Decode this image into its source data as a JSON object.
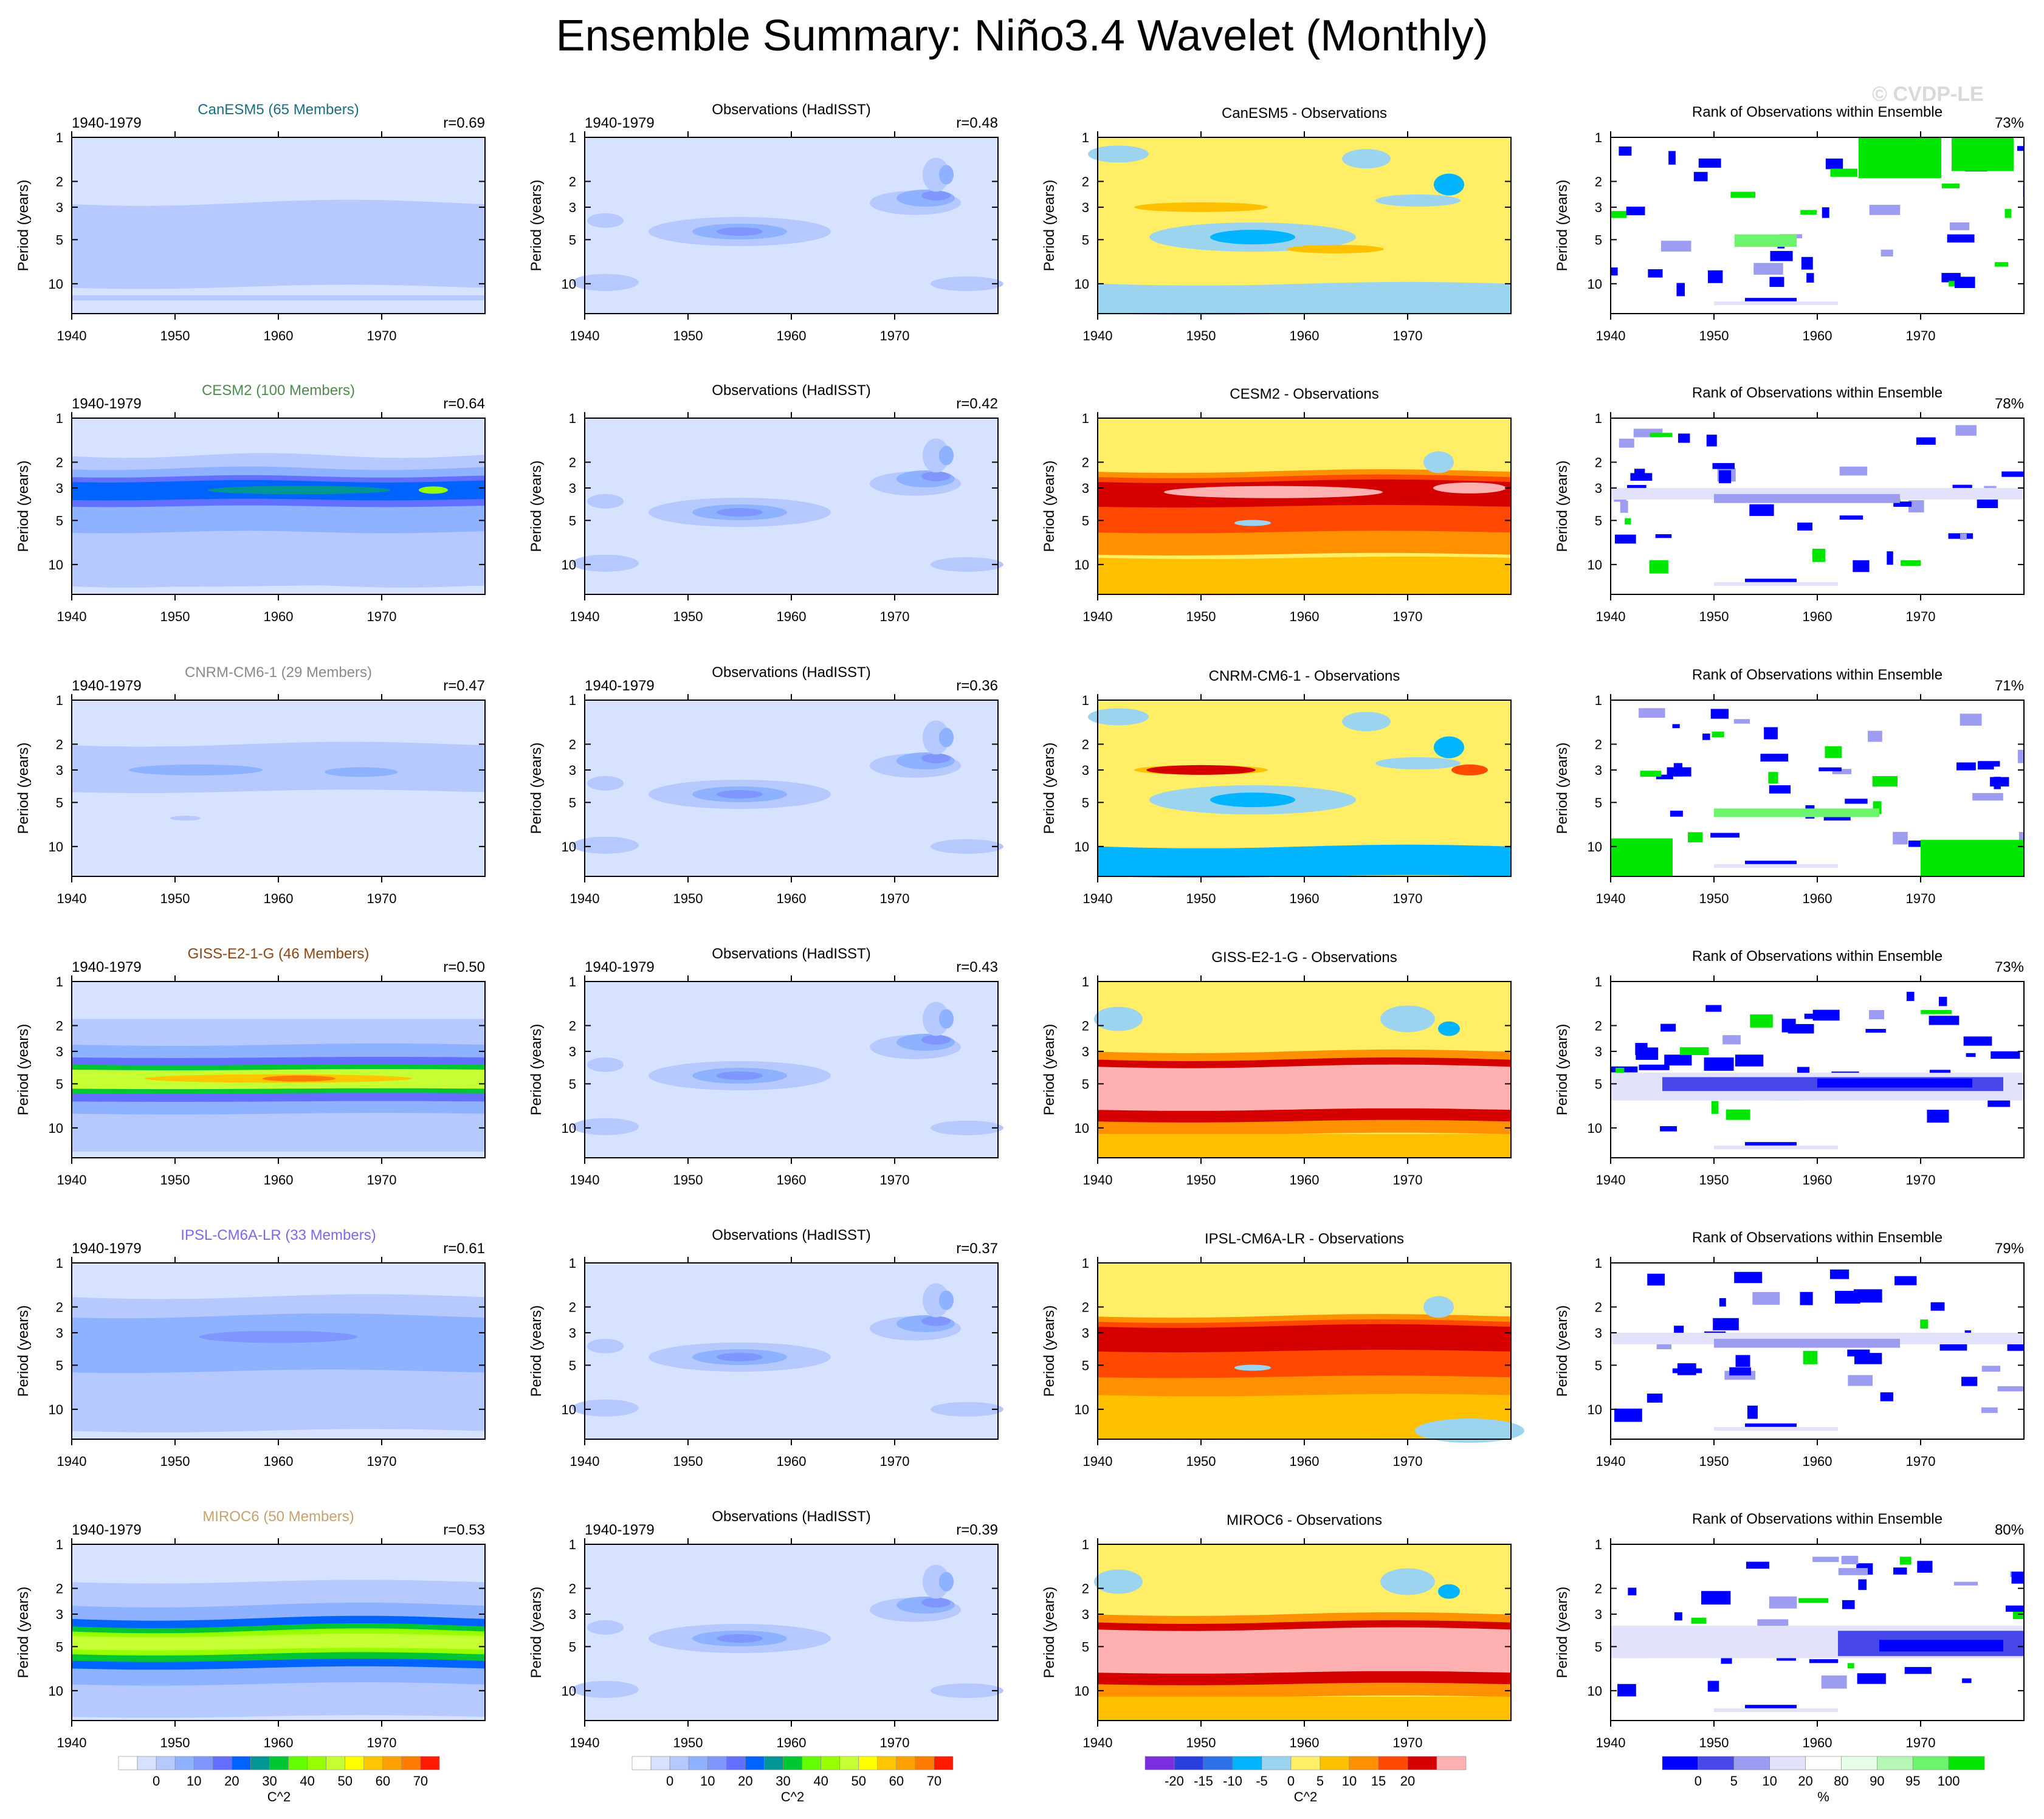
{
  "title": "Ensemble Summary: Niño3.4 Wavelet (Monthly)",
  "watermark": "© CVDP-LE",
  "colors": {
    "power": [
      "#ffffff",
      "#d6e2ff",
      "#b5c9ff",
      "#8eb2ff",
      "#7f96ff",
      "#6370ff",
      "#0063ff",
      "#009696",
      "#00c633",
      "#63ff00",
      "#96ff00",
      "#c6ff33",
      "#ffff00",
      "#ffc600",
      "#ffa000",
      "#ff7c00",
      "#ff1900"
    ],
    "diff": [
      "#7b2ee0",
      "#2840e0",
      "#2f6fe8",
      "#00b4ff",
      "#9cd4f0",
      "#ffee66",
      "#ffc000",
      "#ff9000",
      "#ff4800",
      "#d40000",
      "#ffb0b0"
    ],
    "rank": [
      "#0000ff",
      "#4848ea",
      "#9c9cf0",
      "#e2e2fb",
      "#ffffff",
      "#e6ffe6",
      "#b6f7b6",
      "#6cf56c",
      "#00e600"
    ]
  },
  "panels": {
    "yearrange": "1940-1979",
    "ylabel": "Period (years)",
    "obs_title": "Observations (HadISST)",
    "rank_title": "Rank of Observations within Ensemble",
    "diff_suffix": " - Observations"
  },
  "rows": [
    {
      "model": "CanESM5",
      "members_label": "CanESM5 (65 Members)",
      "label_color": "#1a6e80",
      "r_model": "r=0.69",
      "r_obs": "r=0.48",
      "rank_pct": "73%",
      "diff_title": "CanESM5 - Observations"
    },
    {
      "model": "CESM2",
      "members_label": "CESM2 (100 Members)",
      "label_color": "#4f8a4f",
      "r_model": "r=0.64",
      "r_obs": "r=0.42",
      "rank_pct": "78%",
      "diff_title": "CESM2 - Observations"
    },
    {
      "model": "CNRM-CM6-1",
      "members_label": "CNRM-CM6-1 (29 Members)",
      "label_color": "#8a8a8a",
      "r_model": "r=0.47",
      "r_obs": "r=0.36",
      "rank_pct": "71%",
      "diff_title": "CNRM-CM6-1 - Observations"
    },
    {
      "model": "GISS-E2-1-G",
      "members_label": "GISS-E2-1-G (46 Members)",
      "label_color": "#8b4513",
      "r_model": "r=0.50",
      "r_obs": "r=0.43",
      "rank_pct": "73%",
      "diff_title": "GISS-E2-1-G - Observations"
    },
    {
      "model": "IPSL-CM6A-LR",
      "members_label": "IPSL-CM6A-LR (33 Members)",
      "label_color": "#7b68ee",
      "r_model": "r=0.61",
      "r_obs": "r=0.37",
      "rank_pct": "79%",
      "diff_title": "IPSL-CM6A-LR - Observations"
    },
    {
      "model": "MIROC6",
      "members_label": "MIROC6 (50 Members)",
      "label_color": "#c8a070",
      "r_model": "r=0.53",
      "r_obs": "r=0.39",
      "rank_pct": "80%",
      "diff_title": "MIROC6 - Observations"
    }
  ],
  "chart_data": {
    "type": "heatmap",
    "x_ticks": [
      "1940",
      "1950",
      "1960",
      "1970"
    ],
    "y_ticks": [
      "1",
      "2",
      "3",
      "5",
      "10"
    ],
    "y_scale": "log",
    "xlim": [
      1940,
      1980
    ],
    "ylim": [
      1,
      16
    ],
    "colorbars": [
      {
        "unit": "C^2",
        "labels": [
          "0",
          "10",
          "20",
          "30",
          "40",
          "50",
          "60",
          "70"
        ]
      },
      {
        "unit": "C^2",
        "labels": [
          "0",
          "10",
          "20",
          "30",
          "40",
          "50",
          "60",
          "70"
        ]
      },
      {
        "unit": "C^2",
        "labels": [
          "-20",
          "-15",
          "-10",
          "-5",
          "0",
          "5",
          "10",
          "15",
          "20"
        ]
      },
      {
        "unit": "%",
        "labels": [
          "0",
          "5",
          "10",
          "20",
          "80",
          "90",
          "95",
          "100"
        ]
      }
    ]
  }
}
